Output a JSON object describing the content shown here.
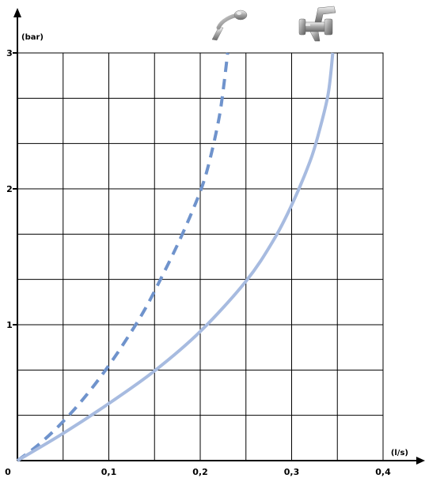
{
  "chart_data": {
    "type": "line",
    "title": "",
    "xlabel": "(l/s)",
    "ylabel": "(bar)",
    "xlim": [
      0,
      0.4
    ],
    "ylim": [
      0,
      3
    ],
    "x_ticks": [
      0,
      0.1,
      0.2,
      0.3,
      0.4
    ],
    "x_tick_labels": [
      "0",
      "0,1",
      "0,2",
      "0,3",
      "0,4"
    ],
    "y_ticks": [
      1,
      2,
      3
    ],
    "y_tick_labels": [
      "1",
      "2",
      "3"
    ],
    "grid": {
      "on": true,
      "x_step": 0.05,
      "y_step": 0.333
    },
    "origin_label": "0",
    "series": [
      {
        "style": "dashed",
        "color": "#6f93cc",
        "end_icon": "hand-shower-icon",
        "points": [
          [
            0,
            0
          ],
          [
            0.02,
            0.1
          ],
          [
            0.04,
            0.22
          ],
          [
            0.06,
            0.36
          ],
          [
            0.08,
            0.52
          ],
          [
            0.1,
            0.7
          ],
          [
            0.12,
            0.9
          ],
          [
            0.14,
            1.12
          ],
          [
            0.16,
            1.38
          ],
          [
            0.18,
            1.66
          ],
          [
            0.2,
            1.98
          ],
          [
            0.21,
            2.2
          ],
          [
            0.22,
            2.5
          ],
          [
            0.225,
            2.72
          ],
          [
            0.23,
            3.0
          ]
        ]
      },
      {
        "style": "solid",
        "color": "#a7bbe0",
        "end_icon": "bath-mixer-tap-icon",
        "points": [
          [
            0,
            0
          ],
          [
            0.05,
            0.2
          ],
          [
            0.1,
            0.42
          ],
          [
            0.15,
            0.66
          ],
          [
            0.2,
            0.95
          ],
          [
            0.25,
            1.32
          ],
          [
            0.28,
            1.62
          ],
          [
            0.3,
            1.88
          ],
          [
            0.32,
            2.2
          ],
          [
            0.33,
            2.42
          ],
          [
            0.34,
            2.7
          ],
          [
            0.345,
            3.0
          ]
        ]
      }
    ]
  }
}
